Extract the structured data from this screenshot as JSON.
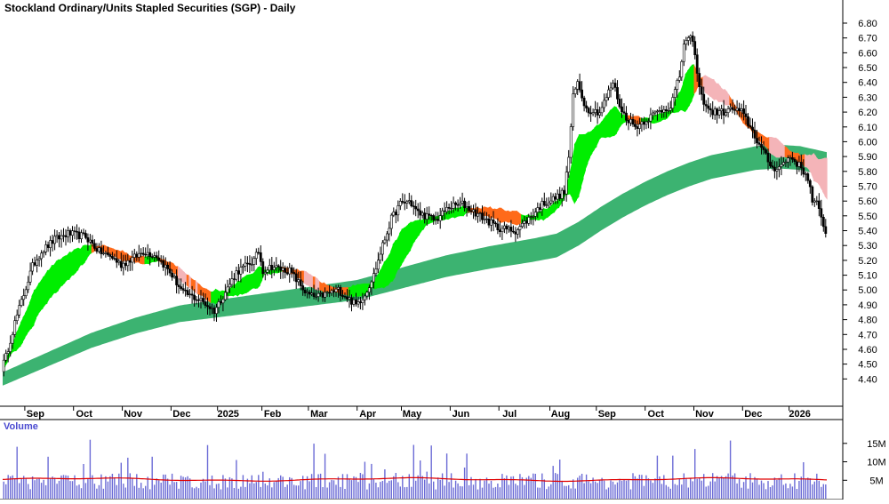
{
  "chart_data": {
    "type": "candlestick",
    "title": "Stockland Ordinary/Units Stapled Securities (SGP) - Daily",
    "price_axis": {
      "ticks": [
        "6.80",
        "6.70",
        "6.60",
        "6.50",
        "6.40",
        "6.30",
        "6.20",
        "6.10",
        "6.00",
        "5.90",
        "5.80",
        "5.70",
        "5.60",
        "5.50",
        "5.40",
        "5.30",
        "5.20",
        "5.10",
        "5.00",
        "4.90",
        "4.80",
        "4.70",
        "4.60",
        "4.50",
        "4.40"
      ],
      "ylim": [
        4.3,
        6.86
      ]
    },
    "time_axis": {
      "labels": [
        "Sep",
        "Oct",
        "Nov",
        "Dec",
        "2025",
        "Feb",
        "Mar",
        "Apr",
        "May",
        "Jun",
        "Jul",
        "Aug",
        "Sep",
        "Oct",
        "Nov",
        "Dec",
        "2026"
      ],
      "label_index": [
        10,
        32,
        54,
        76,
        97,
        117,
        138,
        160,
        180,
        202,
        224,
        247,
        268,
        290,
        312,
        334,
        355
      ],
      "n_bars": 372
    },
    "price_anchors": [
      [
        0,
        4.47
      ],
      [
        2,
        4.55
      ],
      [
        6,
        4.78
      ],
      [
        10,
        4.97
      ],
      [
        14,
        5.16
      ],
      [
        18,
        5.26
      ],
      [
        24,
        5.34
      ],
      [
        30,
        5.38
      ],
      [
        38,
        5.36
      ],
      [
        44,
        5.26
      ],
      [
        50,
        5.22
      ],
      [
        54,
        5.17
      ],
      [
        60,
        5.22
      ],
      [
        64,
        5.26
      ],
      [
        70,
        5.23
      ],
      [
        76,
        5.12
      ],
      [
        82,
        4.98
      ],
      [
        90,
        4.93
      ],
      [
        96,
        4.86
      ],
      [
        100,
        4.96
      ],
      [
        106,
        5.12
      ],
      [
        110,
        5.16
      ],
      [
        114,
        5.2
      ],
      [
        116,
        5.26
      ],
      [
        118,
        5.13
      ],
      [
        122,
        5.16
      ],
      [
        126,
        5.14
      ],
      [
        130,
        5.13
      ],
      [
        134,
        5.05
      ],
      [
        138,
        4.97
      ],
      [
        142,
        4.95
      ],
      [
        148,
        4.98
      ],
      [
        152,
        5.0
      ],
      [
        156,
        4.95
      ],
      [
        160,
        4.9
      ],
      [
        164,
        4.97
      ],
      [
        168,
        5.1
      ],
      [
        172,
        5.3
      ],
      [
        176,
        5.48
      ],
      [
        180,
        5.58
      ],
      [
        184,
        5.6
      ],
      [
        188,
        5.52
      ],
      [
        196,
        5.47
      ],
      [
        202,
        5.56
      ],
      [
        208,
        5.58
      ],
      [
        216,
        5.5
      ],
      [
        224,
        5.42
      ],
      [
        232,
        5.4
      ],
      [
        238,
        5.48
      ],
      [
        244,
        5.58
      ],
      [
        250,
        5.62
      ],
      [
        254,
        5.66
      ],
      [
        256,
        5.9
      ],
      [
        258,
        6.3
      ],
      [
        260,
        6.4
      ],
      [
        264,
        6.22
      ],
      [
        270,
        6.2
      ],
      [
        276,
        6.4
      ],
      [
        280,
        6.2
      ],
      [
        286,
        6.1
      ],
      [
        290,
        6.14
      ],
      [
        296,
        6.2
      ],
      [
        302,
        6.24
      ],
      [
        306,
        6.44
      ],
      [
        308,
        6.66
      ],
      [
        312,
        6.7
      ],
      [
        314,
        6.45
      ],
      [
        316,
        6.3
      ],
      [
        320,
        6.2
      ],
      [
        326,
        6.2
      ],
      [
        330,
        6.22
      ],
      [
        334,
        6.2
      ],
      [
        338,
        6.1
      ],
      [
        342,
        5.98
      ],
      [
        345,
        5.9
      ],
      [
        348,
        5.82
      ],
      [
        352,
        5.84
      ],
      [
        356,
        5.9
      ],
      [
        360,
        5.84
      ],
      [
        364,
        5.76
      ],
      [
        366,
        5.6
      ],
      [
        368,
        5.58
      ],
      [
        370,
        5.48
      ],
      [
        372,
        5.4
      ]
    ],
    "ma_short_anchors": [
      [
        0,
        4.47
      ],
      [
        4,
        4.6
      ],
      [
        8,
        4.7
      ],
      [
        12,
        4.82
      ],
      [
        16,
        4.94
      ],
      [
        22,
        5.06
      ],
      [
        28,
        5.14
      ],
      [
        34,
        5.21
      ],
      [
        40,
        5.28
      ],
      [
        46,
        5.28
      ],
      [
        52,
        5.24
      ],
      [
        58,
        5.21
      ],
      [
        64,
        5.2
      ],
      [
        70,
        5.21
      ],
      [
        76,
        5.16
      ],
      [
        82,
        5.08
      ],
      [
        88,
        5.01
      ],
      [
        94,
        4.95
      ],
      [
        100,
        4.97
      ],
      [
        106,
        5.01
      ],
      [
        110,
        5.04
      ],
      [
        114,
        5.07
      ],
      [
        118,
        5.12
      ],
      [
        126,
        5.14
      ],
      [
        132,
        5.12
      ],
      [
        138,
        5.07
      ],
      [
        144,
        5.02
      ],
      [
        150,
        5.0
      ],
      [
        156,
        4.99
      ],
      [
        162,
        5.0
      ],
      [
        168,
        5.04
      ],
      [
        174,
        5.13
      ],
      [
        180,
        5.29
      ],
      [
        186,
        5.4
      ],
      [
        192,
        5.47
      ],
      [
        198,
        5.49
      ],
      [
        204,
        5.52
      ],
      [
        210,
        5.54
      ],
      [
        218,
        5.53
      ],
      [
        226,
        5.5
      ],
      [
        234,
        5.48
      ],
      [
        240,
        5.49
      ],
      [
        246,
        5.52
      ],
      [
        252,
        5.6
      ],
      [
        258,
        5.78
      ],
      [
        264,
        5.96
      ],
      [
        270,
        6.08
      ],
      [
        276,
        6.14
      ],
      [
        282,
        6.16
      ],
      [
        288,
        6.14
      ],
      [
        294,
        6.15
      ],
      [
        300,
        6.18
      ],
      [
        306,
        6.28
      ],
      [
        312,
        6.42
      ],
      [
        316,
        6.4
      ],
      [
        322,
        6.34
      ],
      [
        328,
        6.28
      ],
      [
        334,
        6.16
      ],
      [
        340,
        6.05
      ],
      [
        346,
        5.98
      ],
      [
        352,
        5.94
      ],
      [
        358,
        5.9
      ],
      [
        364,
        5.86
      ],
      [
        368,
        5.8
      ],
      [
        372,
        5.75
      ]
    ],
    "ma_long_anchors": [
      [
        0,
        4.4
      ],
      [
        20,
        4.53
      ],
      [
        40,
        4.66
      ],
      [
        60,
        4.76
      ],
      [
        80,
        4.84
      ],
      [
        100,
        4.88
      ],
      [
        120,
        4.92
      ],
      [
        140,
        4.96
      ],
      [
        160,
        5.0
      ],
      [
        180,
        5.08
      ],
      [
        200,
        5.16
      ],
      [
        220,
        5.22
      ],
      [
        240,
        5.27
      ],
      [
        250,
        5.3
      ],
      [
        260,
        5.38
      ],
      [
        270,
        5.48
      ],
      [
        280,
        5.57
      ],
      [
        290,
        5.65
      ],
      [
        300,
        5.72
      ],
      [
        310,
        5.78
      ],
      [
        320,
        5.83
      ],
      [
        330,
        5.86
      ],
      [
        340,
        5.89
      ],
      [
        350,
        5.9
      ],
      [
        360,
        5.89
      ],
      [
        372,
        5.85
      ]
    ],
    "volume_axis": {
      "ticks": [
        "15M",
        "10M",
        "5M"
      ],
      "ylim": [
        0,
        20
      ]
    },
    "volume_label": "Volume",
    "volume_baseline_m": 5.2,
    "colors": {
      "background": "#ffffff",
      "candle": "#000000",
      "ribbon_up": "#00ee00",
      "ribbon_down": "#ff6a1a",
      "ribbon_fade": "#f4b4b8",
      "long_ribbon": "#3cb371",
      "volume_bar": "#6b6bd6",
      "volume_ma": "#e00000",
      "axis": "#000000"
    }
  }
}
